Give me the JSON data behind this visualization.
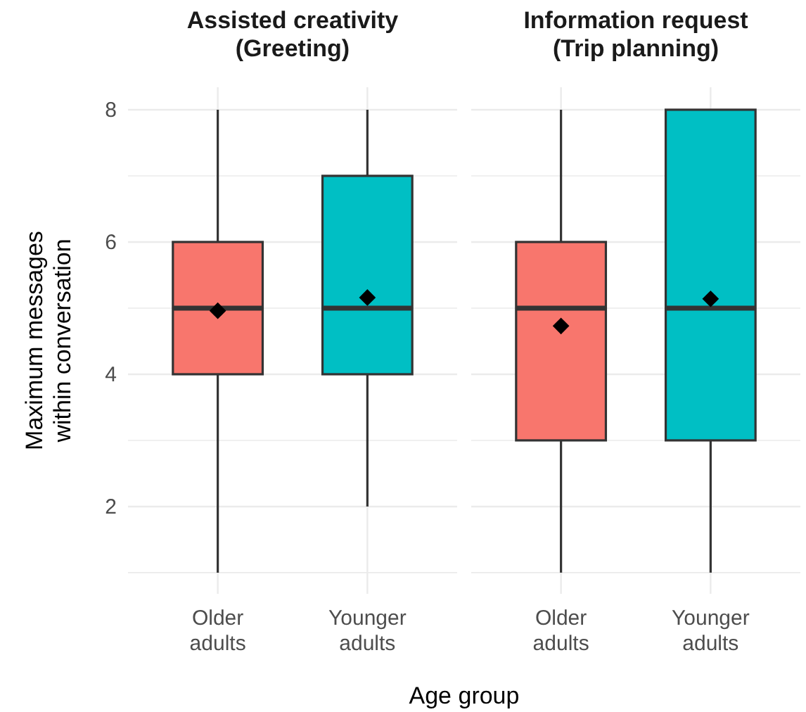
{
  "chart_data": [
    {
      "type": "box",
      "title": "Assisted creativity\n(Greeting)",
      "xlabel": "Age group",
      "ylabel": "Maximum messages\nwithin conversation",
      "categories": [
        "Older\nadults",
        "Younger\nadults"
      ],
      "colors": [
        "#f8766d",
        "#00bfc4"
      ],
      "boxes": [
        {
          "low": 1,
          "q1": 4,
          "median": 5,
          "q3": 6,
          "high": 8
        },
        {
          "low": 2,
          "q1": 4,
          "median": 5,
          "q3": 7,
          "high": 8
        }
      ],
      "series": [
        {
          "type": "scatter",
          "x": [
            "Older\nadults",
            "Younger\nadults"
          ],
          "values": [
            4.96,
            5.16
          ],
          "color": "#000000"
        }
      ],
      "marker": "diamond",
      "ylim": [
        0.68,
        8.34
      ],
      "yticks": [
        {
          "value": 1,
          "label": null
        },
        2,
        {
          "value": 3,
          "label": null
        },
        4,
        {
          "value": 5,
          "label": null
        },
        6,
        {
          "value": 7,
          "label": null
        },
        8
      ],
      "grid": true
    },
    {
      "type": "box",
      "title": "Information request\n(Trip planning)",
      "categories": [
        "Older\nadults",
        "Younger\nadults"
      ],
      "colors": [
        "#f8766d",
        "#00bfc4"
      ],
      "boxes": [
        {
          "low": 1,
          "q1": 3,
          "median": 5,
          "q3": 6,
          "high": 8
        },
        {
          "low": 1,
          "q1": 3,
          "median": 5,
          "q3": 8,
          "high": 8
        }
      ],
      "series": [
        {
          "type": "scatter",
          "x": [
            "Older\nadults",
            "Younger\nadults"
          ],
          "values": [
            4.73,
            5.14
          ],
          "color": "#000000"
        }
      ],
      "marker": "diamond",
      "ylim": [
        0.68,
        8.34
      ],
      "yticks": [
        {
          "value": 1,
          "label": null
        },
        2,
        {
          "value": 3,
          "label": null
        },
        4,
        {
          "value": 5,
          "label": null
        },
        6,
        {
          "value": 7,
          "label": null
        },
        8
      ],
      "grid": true,
      "tick_labels": "x"
    }
  ]
}
